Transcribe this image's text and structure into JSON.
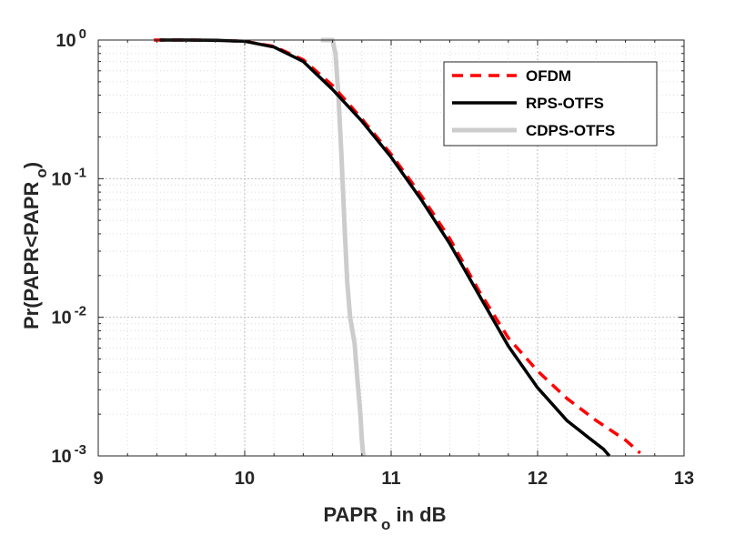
{
  "chart_data": {
    "type": "line",
    "title": "",
    "xlabel": "PAPR",
    "xlabel_sub": "o",
    "xlabel_suffix": " in dB",
    "ylabel": "Pr(PAPR<PAPR",
    "ylabel_sub": "o",
    "ylabel_suffix": ")",
    "xlim": [
      9,
      13
    ],
    "ylim": [
      0.001,
      1
    ],
    "yscale": "log",
    "grid": true,
    "legend_position": "top-right",
    "xticks": [
      "9",
      "10",
      "11",
      "12",
      "13"
    ],
    "yticks": [
      {
        "base": "10",
        "exp": "0"
      },
      {
        "base": "10",
        "exp": "-1"
      },
      {
        "base": "10",
        "exp": "-2"
      },
      {
        "base": "10",
        "exp": "-3"
      }
    ],
    "series": [
      {
        "name": "OFDM",
        "color": "#ff0000",
        "style": "dashed",
        "x": [
          9.38,
          9.6,
          9.8,
          10.0,
          10.2,
          10.4,
          10.6,
          10.8,
          11.0,
          11.2,
          11.4,
          11.6,
          11.8,
          12.0,
          12.2,
          12.4,
          12.6,
          12.7
        ],
        "y": [
          1.0,
          1.0,
          0.995,
          0.98,
          0.9,
          0.72,
          0.47,
          0.27,
          0.15,
          0.077,
          0.037,
          0.0155,
          0.0071,
          0.0041,
          0.0026,
          0.0018,
          0.0013,
          0.00105
        ]
      },
      {
        "name": "RPS-OTFS",
        "color": "#000000",
        "style": "solid",
        "x": [
          9.42,
          9.6,
          9.8,
          10.0,
          10.2,
          10.4,
          10.6,
          10.8,
          11.0,
          11.2,
          11.4,
          11.6,
          11.8,
          12.0,
          12.2,
          12.35,
          12.45,
          12.49
        ],
        "y": [
          1.0,
          1.0,
          0.995,
          0.98,
          0.89,
          0.7,
          0.44,
          0.26,
          0.143,
          0.072,
          0.034,
          0.0145,
          0.0062,
          0.0031,
          0.0018,
          0.00135,
          0.00112,
          0.001
        ]
      },
      {
        "name": "CDPS-OTFS",
        "color": "#cccccc",
        "style": "solid",
        "x": [
          10.52,
          10.6,
          10.62,
          10.64,
          10.66,
          10.68,
          10.7,
          10.72,
          10.75,
          10.77,
          10.79,
          10.8,
          10.81
        ],
        "y": [
          1.0,
          1.0,
          0.8,
          0.4,
          0.15,
          0.05,
          0.018,
          0.01,
          0.0065,
          0.0035,
          0.002,
          0.0013,
          0.001
        ]
      }
    ]
  }
}
